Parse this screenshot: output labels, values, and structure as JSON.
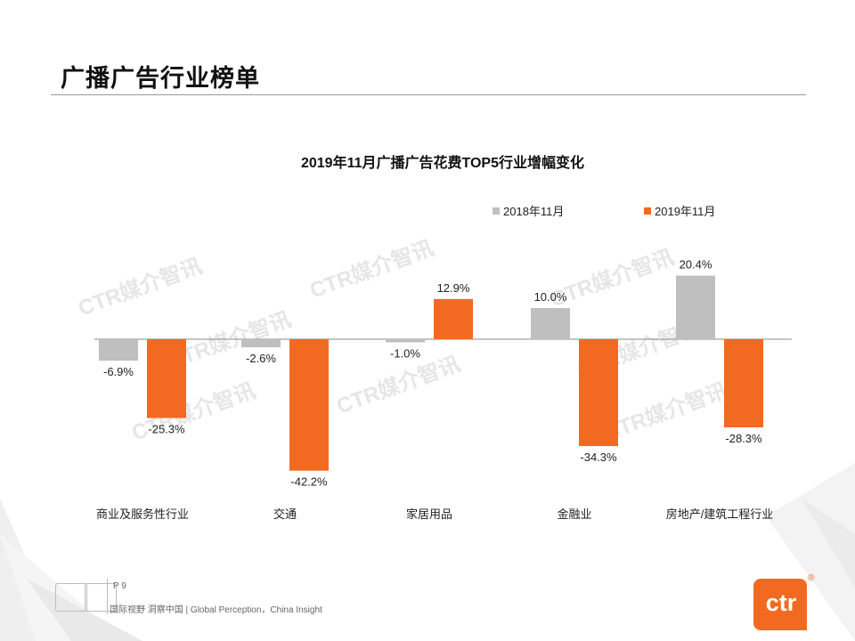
{
  "page": {
    "title": "广播广告行业榜单"
  },
  "footer": {
    "page_number": "P 9",
    "slogan": "国际视野  洞察中国 |  Global Perception，China Insight"
  },
  "logo": {
    "text": "ctr",
    "reg_mark": "®"
  },
  "watermark": "CTR媒介智讯",
  "colors": {
    "series_2018": "#bfbfbf",
    "series_2019": "#f26a21",
    "accent": "#f26a21"
  },
  "chart_data": {
    "type": "bar",
    "title": "2019年11月广播广告花费TOP5行业增幅变化",
    "categories": [
      "商业及服务性行业",
      "交通",
      "家居用品",
      "金融业",
      "房地产/建筑工程行业"
    ],
    "series": [
      {
        "name": "2018年11月",
        "values": [
          -6.9,
          -2.6,
          -1.0,
          10.0,
          20.4
        ],
        "labels": [
          "-6.9%",
          "-2.6%",
          "-1.0%",
          "10.0%",
          "20.4%"
        ]
      },
      {
        "name": "2019年11月",
        "values": [
          -25.3,
          -42.2,
          12.9,
          -34.3,
          -28.3
        ],
        "labels": [
          "-25.3%",
          "-42.2%",
          "12.9%",
          "-34.3%",
          "-28.3%"
        ]
      }
    ],
    "unit": "%",
    "legend_position": "top-right",
    "grid": false
  }
}
